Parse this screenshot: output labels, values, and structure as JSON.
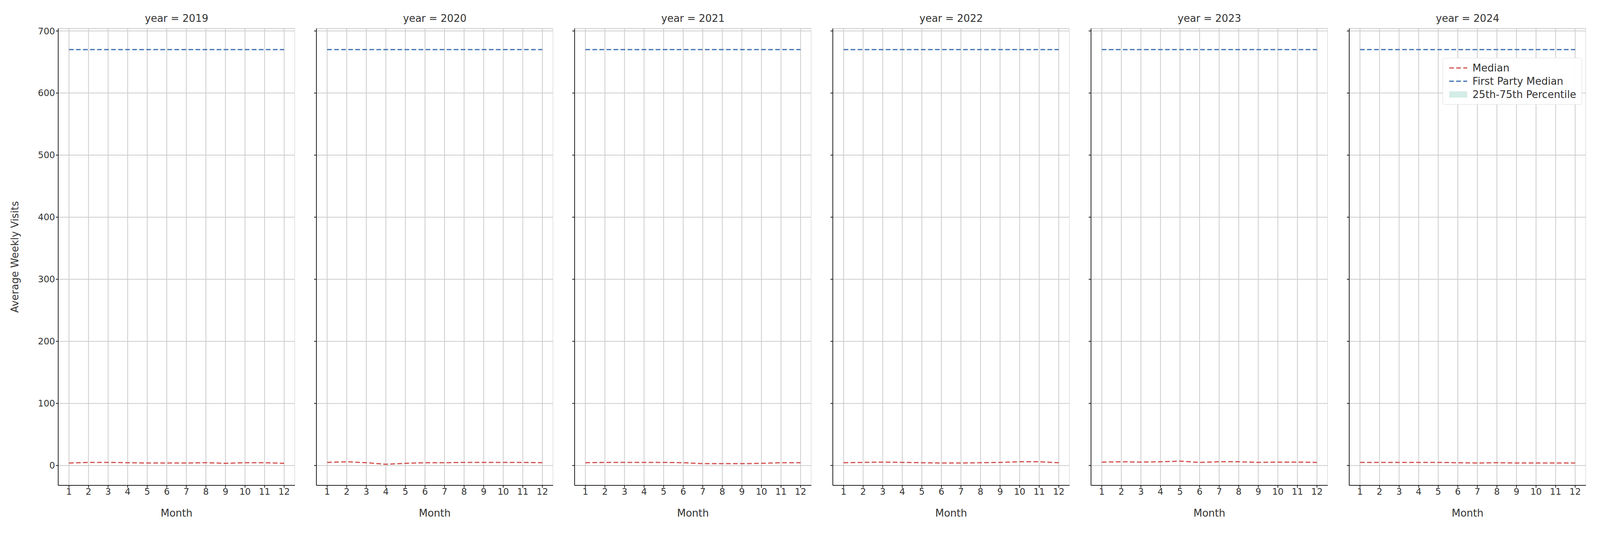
{
  "chart_data": [
    {
      "type": "line",
      "title": "year = 2019",
      "x_label": "Month",
      "y_label": "Average Weekly Visits",
      "x": [
        1,
        2,
        3,
        4,
        5,
        6,
        7,
        8,
        9,
        10,
        11,
        12
      ],
      "xlim": [
        0.45,
        12.55
      ],
      "xticks": [
        1,
        2,
        3,
        4,
        5,
        6,
        7,
        8,
        9,
        10,
        11,
        12
      ],
      "ylim": [
        -32,
        704
      ],
      "yticks": [
        0,
        100,
        200,
        300,
        400,
        500,
        600,
        700
      ],
      "grid": true,
      "tick_labels": true,
      "series": [
        {
          "name": "Median",
          "color": "#d45050",
          "line_style": "dashed",
          "values": [
            4,
            5,
            5,
            4.5,
            4,
            4,
            4,
            4.5,
            3.5,
            4.5,
            4.5,
            3.5
          ]
        },
        {
          "name": "First Party Median",
          "color": "#3a6eb0",
          "line_style": "dashed",
          "values": [
            670,
            670,
            670,
            670,
            670,
            670,
            670,
            670,
            670,
            670,
            670,
            670
          ]
        },
        {
          "name": "25th-75th Percentile",
          "type": "band",
          "color": "#d3ede6",
          "low": [
            3,
            4,
            4,
            3.5,
            3,
            3,
            3,
            3.5,
            2.5,
            3.5,
            3.5,
            2.5
          ],
          "high": [
            5,
            6,
            6,
            5.5,
            5,
            5,
            5,
            5.5,
            4.5,
            5.5,
            5.5,
            4.5
          ]
        }
      ]
    },
    {
      "type": "line",
      "title": "year = 2020",
      "x_label": "Month",
      "x": [
        1,
        2,
        3,
        4,
        5,
        6,
        7,
        8,
        9,
        10,
        11,
        12
      ],
      "xlim": [
        0.45,
        12.55
      ],
      "xticks": [
        1,
        2,
        3,
        4,
        5,
        6,
        7,
        8,
        9,
        10,
        11,
        12
      ],
      "ylim": [
        -32,
        704
      ],
      "yticks": [
        0,
        100,
        200,
        300,
        400,
        500,
        600,
        700
      ],
      "grid": true,
      "tick_labels": "x",
      "series": [
        {
          "name": "Median",
          "color": "#d45050",
          "line_style": "dashed",
          "values": [
            5,
            6,
            4.5,
            2,
            3.5,
            4.5,
            4.5,
            5,
            5,
            5,
            5,
            4.5
          ]
        },
        {
          "name": "First Party Median",
          "color": "#3a6eb0",
          "line_style": "dashed",
          "values": [
            670,
            670,
            670,
            670,
            670,
            670,
            670,
            670,
            670,
            670,
            670,
            670
          ]
        },
        {
          "name": "25th-75th Percentile",
          "type": "band",
          "color": "#d3ede6",
          "low": [
            4,
            5,
            3.5,
            1,
            2.5,
            3.5,
            3.5,
            4,
            4,
            4,
            4,
            3.5
          ],
          "high": [
            6,
            7,
            5.5,
            3,
            4.5,
            5.5,
            5.5,
            6,
            6,
            6,
            6,
            5.5
          ]
        }
      ]
    },
    {
      "type": "line",
      "title": "year = 2021",
      "x_label": "Month",
      "x": [
        1,
        2,
        3,
        4,
        5,
        6,
        7,
        8,
        9,
        10,
        11,
        12
      ],
      "xlim": [
        0.45,
        12.55
      ],
      "xticks": [
        1,
        2,
        3,
        4,
        5,
        6,
        7,
        8,
        9,
        10,
        11,
        12
      ],
      "ylim": [
        -32,
        704
      ],
      "yticks": [
        0,
        100,
        200,
        300,
        400,
        500,
        600,
        700
      ],
      "grid": true,
      "tick_labels": "x",
      "series": [
        {
          "name": "Median",
          "color": "#d45050",
          "line_style": "dashed",
          "values": [
            4.5,
            5,
            5,
            5,
            5,
            4.5,
            3,
            3,
            3,
            3.5,
            4.5,
            4.5
          ]
        },
        {
          "name": "First Party Median",
          "color": "#3a6eb0",
          "line_style": "dashed",
          "values": [
            670,
            670,
            670,
            670,
            670,
            670,
            670,
            670,
            670,
            670,
            670,
            670
          ]
        },
        {
          "name": "25th-75th Percentile",
          "type": "band",
          "color": "#d3ede6",
          "low": [
            3.5,
            4,
            4,
            4,
            4,
            3.5,
            2,
            2,
            2,
            2.5,
            3.5,
            3.5
          ],
          "high": [
            5.5,
            6,
            6,
            6,
            6,
            5.5,
            4,
            4,
            4,
            4.5,
            5.5,
            5.5
          ]
        }
      ]
    },
    {
      "type": "line",
      "title": "year = 2022",
      "x_label": "Month",
      "x": [
        1,
        2,
        3,
        4,
        5,
        6,
        7,
        8,
        9,
        10,
        11,
        12
      ],
      "xlim": [
        0.45,
        12.55
      ],
      "xticks": [
        1,
        2,
        3,
        4,
        5,
        6,
        7,
        8,
        9,
        10,
        11,
        12
      ],
      "ylim": [
        -32,
        704
      ],
      "yticks": [
        0,
        100,
        200,
        300,
        400,
        500,
        600,
        700
      ],
      "grid": true,
      "tick_labels": "x",
      "series": [
        {
          "name": "Median",
          "color": "#d45050",
          "line_style": "dashed",
          "values": [
            4.5,
            5,
            5.5,
            5,
            4.5,
            4,
            4,
            4.5,
            5,
            6,
            6,
            4.5
          ]
        },
        {
          "name": "First Party Median",
          "color": "#3a6eb0",
          "line_style": "dashed",
          "values": [
            670,
            670,
            670,
            670,
            670,
            670,
            670,
            670,
            670,
            670,
            670,
            670
          ]
        },
        {
          "name": "25th-75th Percentile",
          "type": "band",
          "color": "#d3ede6",
          "low": [
            3.5,
            4,
            4.5,
            4,
            3.5,
            3,
            3,
            3.5,
            4,
            5,
            5,
            3.5
          ],
          "high": [
            5.5,
            6,
            6.5,
            6,
            5.5,
            5,
            5,
            5.5,
            6,
            7,
            7,
            5.5
          ]
        }
      ]
    },
    {
      "type": "line",
      "title": "year = 2023",
      "x_label": "Month",
      "x": [
        1,
        2,
        3,
        4,
        5,
        6,
        7,
        8,
        9,
        10,
        11,
        12
      ],
      "xlim": [
        0.45,
        12.55
      ],
      "xticks": [
        1,
        2,
        3,
        4,
        5,
        6,
        7,
        8,
        9,
        10,
        11,
        12
      ],
      "ylim": [
        -32,
        704
      ],
      "yticks": [
        0,
        100,
        200,
        300,
        400,
        500,
        600,
        700
      ],
      "grid": true,
      "tick_labels": "x",
      "series": [
        {
          "name": "Median",
          "color": "#d45050",
          "line_style": "dashed",
          "values": [
            5.5,
            6,
            5.5,
            6,
            7,
            5,
            6,
            6,
            5,
            5.5,
            5.5,
            5
          ]
        },
        {
          "name": "First Party Median",
          "color": "#3a6eb0",
          "line_style": "dashed",
          "values": [
            670,
            670,
            670,
            670,
            670,
            670,
            670,
            670,
            670,
            670,
            670,
            670
          ]
        },
        {
          "name": "25th-75th Percentile",
          "type": "band",
          "color": "#d3ede6",
          "low": [
            4.5,
            5,
            4.5,
            5,
            6,
            4,
            5,
            5,
            4,
            4.5,
            4.5,
            4
          ],
          "high": [
            6.5,
            7,
            6.5,
            7,
            8,
            6,
            7,
            7,
            6,
            6.5,
            6.5,
            6
          ]
        }
      ]
    },
    {
      "type": "line",
      "title": "year = 2024",
      "x_label": "Month",
      "x": [
        1,
        2,
        3,
        4,
        5,
        6,
        7,
        8,
        9,
        10,
        11,
        12
      ],
      "xlim": [
        0.45,
        12.55
      ],
      "xticks": [
        1,
        2,
        3,
        4,
        5,
        6,
        7,
        8,
        9,
        10,
        11,
        12
      ],
      "ylim": [
        -32,
        704
      ],
      "yticks": [
        0,
        100,
        200,
        300,
        400,
        500,
        600,
        700
      ],
      "grid": true,
      "tick_labels": "x",
      "legend": "upper right",
      "series": [
        {
          "name": "Median",
          "color": "#d45050",
          "line_style": "dashed",
          "values": [
            5,
            5,
            5,
            5,
            5,
            4.5,
            4,
            4.5,
            4,
            4,
            4,
            4
          ]
        },
        {
          "name": "First Party Median",
          "color": "#3a6eb0",
          "line_style": "dashed",
          "values": [
            670,
            670,
            670,
            670,
            670,
            670,
            670,
            670,
            670,
            670,
            670,
            670
          ]
        },
        {
          "name": "25th-75th Percentile",
          "type": "band",
          "color": "#d3ede6",
          "low": [
            4,
            4,
            4,
            4,
            4,
            3.5,
            3,
            3.5,
            3,
            3,
            3,
            3
          ],
          "high": [
            6,
            6,
            6,
            6,
            6,
            5.5,
            5,
            5.5,
            5,
            5,
            5,
            5
          ]
        }
      ]
    }
  ]
}
